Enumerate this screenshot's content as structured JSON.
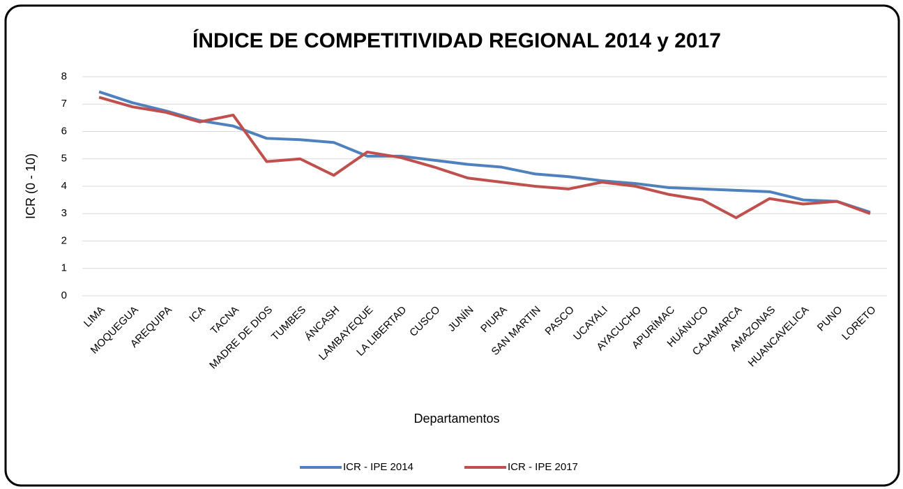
{
  "chart_data": {
    "type": "line",
    "title": "ÍNDICE DE COMPETITIVIDAD REGIONAL 2014 y 2017",
    "x_label": "Departamentos",
    "y_label": "ICR (0 - 10)",
    "categories": [
      "LIMA",
      "MOQUEGUA",
      "AREQUIPA",
      "ICA",
      "TACNA",
      "MADRE DE DIOS",
      "TUMBES",
      "ÁNCASH",
      "LAMBAYEQUE",
      "LA LIBERTAD",
      "CUSCO",
      "JUNÍN",
      "PIURA",
      "SAN MARTIN",
      "PASCO",
      "UCAYALI",
      "AYACUCHO",
      "APURÍMAC",
      "HUÁNUCO",
      "CAJAMARCA",
      "AMAZONAS",
      "HUANCAVELICA",
      "PUNO",
      "LORETO"
    ],
    "series": [
      {
        "name": "ICR  - IPE 2014",
        "color": "#4f81bd",
        "values": [
          7.45,
          7.05,
          6.75,
          6.4,
          6.2,
          5.75,
          5.7,
          5.6,
          5.1,
          5.1,
          4.95,
          4.8,
          4.7,
          4.45,
          4.35,
          4.2,
          4.1,
          3.95,
          3.9,
          3.85,
          3.8,
          3.5,
          3.45,
          3.05
        ]
      },
      {
        "name": "ICR  - IPE 2017",
        "color": "#c0504d",
        "values": [
          7.25,
          6.9,
          6.7,
          6.35,
          6.6,
          4.9,
          5.0,
          4.4,
          5.25,
          5.05,
          4.7,
          4.3,
          4.15,
          4.0,
          3.9,
          4.15,
          4.0,
          3.7,
          3.5,
          2.85,
          3.55,
          3.35,
          3.45,
          3.0
        ]
      }
    ],
    "ylim": [
      0,
      8
    ],
    "yticks": [
      0,
      1,
      2,
      3,
      4,
      5,
      6,
      7,
      8
    ],
    "grid": true,
    "legend": "bottom"
  }
}
